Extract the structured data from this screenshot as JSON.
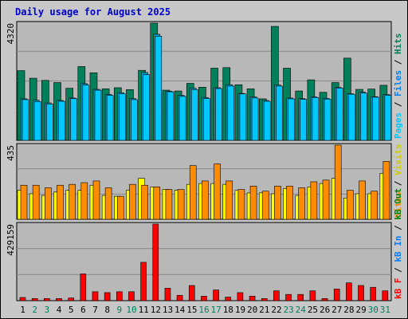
{
  "title": "Daily usage for August 2025",
  "colors": {
    "background": "#c8c8c8",
    "plot_bg": "#b8b8b8",
    "gridline": "#888888",
    "pages": "#00c8ff",
    "files": "#00a0c8",
    "hits": "#00805a",
    "visits": "#ffff00",
    "sites": "#ff8c00",
    "kb_out": "#008000",
    "kb_in": "#0080ff",
    "kb_f": "#ff0000",
    "weekend_label": "#00805a",
    "weekday_label": "#000000"
  },
  "legends": {
    "top": [
      {
        "text": "Pages",
        "color": "#00c8ff"
      },
      {
        "text": " / ",
        "color": "#000000"
      },
      {
        "text": "Files",
        "color": "#0080ff"
      },
      {
        "text": " / ",
        "color": "#000000"
      },
      {
        "text": "Hits",
        "color": "#00805a"
      }
    ],
    "middle": [
      {
        "text": "Sites",
        "color": "#ff8c00"
      },
      {
        "text": " / ",
        "color": "#000000"
      },
      {
        "text": "Visits",
        "color": "#cccc00"
      }
    ],
    "bottom": [
      {
        "text": "kB F",
        "color": "#ff0000"
      },
      {
        "text": " / ",
        "color": "#000000"
      },
      {
        "text": "kB In",
        "color": "#0080ff"
      },
      {
        "text": " / ",
        "color": "#000000"
      },
      {
        "text": "kB Out",
        "color": "#008000"
      }
    ]
  },
  "chart_data": [
    {
      "type": "bar",
      "panel": "hits-files-pages",
      "ymax_label": "4320",
      "ylim": [
        0,
        4320
      ],
      "categories": [
        "1",
        "2",
        "3",
        "4",
        "5",
        "6",
        "7",
        "8",
        "9",
        "10",
        "11",
        "12",
        "13",
        "14",
        "15",
        "16",
        "17",
        "18",
        "19",
        "20",
        "21",
        "22",
        "23",
        "24",
        "25",
        "26",
        "27",
        "28",
        "29",
        "30",
        "31"
      ],
      "weekend_days": [
        "2",
        "3",
        "9",
        "10",
        "16",
        "17",
        "23",
        "24",
        "30",
        "31"
      ],
      "series": [
        {
          "name": "Hits",
          "values": [
            2570,
            2290,
            2210,
            2130,
            1920,
            2720,
            2490,
            1900,
            1940,
            1870,
            2580,
            4320,
            1850,
            1820,
            2100,
            1960,
            2660,
            2680,
            2050,
            1900,
            1530,
            4200,
            2660,
            1820,
            2230,
            1770,
            2130,
            3030,
            1880,
            1890,
            2030
          ]
        },
        {
          "name": "Files",
          "values": [
            1530,
            1480,
            1380,
            1470,
            1560,
            2090,
            1880,
            1690,
            1760,
            1540,
            2500,
            3910,
            1810,
            1660,
            1920,
            1580,
            1940,
            2050,
            1730,
            1600,
            1470,
            2040,
            1560,
            1540,
            1600,
            1550,
            1950,
            1720,
            1780,
            1610,
            1690
          ]
        },
        {
          "name": "Pages",
          "values": [
            1500,
            1430,
            1340,
            1440,
            1540,
            2040,
            1850,
            1660,
            1720,
            1500,
            2420,
            3840,
            1790,
            1620,
            1870,
            1540,
            1910,
            2000,
            1710,
            1560,
            1440,
            2000,
            1530,
            1510,
            1580,
            1520,
            1930,
            1700,
            1740,
            1590,
            1660
          ]
        }
      ]
    },
    {
      "type": "bar",
      "panel": "sites-visits",
      "ymax_label": "435",
      "ylim": [
        0,
        435
      ],
      "categories": [
        "1",
        "2",
        "3",
        "4",
        "5",
        "6",
        "7",
        "8",
        "9",
        "10",
        "11",
        "12",
        "13",
        "14",
        "15",
        "16",
        "17",
        "18",
        "19",
        "20",
        "21",
        "22",
        "23",
        "24",
        "25",
        "26",
        "27",
        "28",
        "29",
        "30",
        "31"
      ],
      "series": [
        {
          "name": "Visits",
          "values": [
            170,
            150,
            140,
            160,
            170,
            170,
            200,
            140,
            135,
            170,
            240,
            190,
            175,
            170,
            205,
            210,
            210,
            205,
            170,
            155,
            155,
            150,
            180,
            140,
            190,
            210,
            240,
            125,
            150,
            150,
            270
          ]
        },
        {
          "name": "Sites",
          "values": [
            200,
            200,
            185,
            200,
            205,
            215,
            225,
            185,
            135,
            205,
            200,
            190,
            175,
            175,
            315,
            225,
            325,
            225,
            175,
            195,
            165,
            195,
            195,
            185,
            220,
            230,
            435,
            170,
            225,
            165,
            340
          ]
        }
      ]
    },
    {
      "type": "bar",
      "panel": "kbytes",
      "ymax_label": "429159",
      "ylim": [
        0,
        429159
      ],
      "categories": [
        "1",
        "2",
        "3",
        "4",
        "5",
        "6",
        "7",
        "8",
        "9",
        "10",
        "11",
        "12",
        "13",
        "14",
        "15",
        "16",
        "17",
        "18",
        "19",
        "20",
        "21",
        "22",
        "23",
        "24",
        "25",
        "26",
        "27",
        "28",
        "29",
        "30",
        "31"
      ],
      "series": [
        {
          "name": "kB F",
          "values": [
            18000,
            12000,
            12000,
            12000,
            15000,
            150000,
            50000,
            45000,
            50000,
            50000,
            215000,
            429159,
            70000,
            30000,
            85000,
            25000,
            60000,
            20000,
            45000,
            25000,
            12000,
            55000,
            35000,
            35000,
            55000,
            12000,
            65000,
            100000,
            85000,
            75000,
            55000
          ]
        }
      ]
    }
  ]
}
